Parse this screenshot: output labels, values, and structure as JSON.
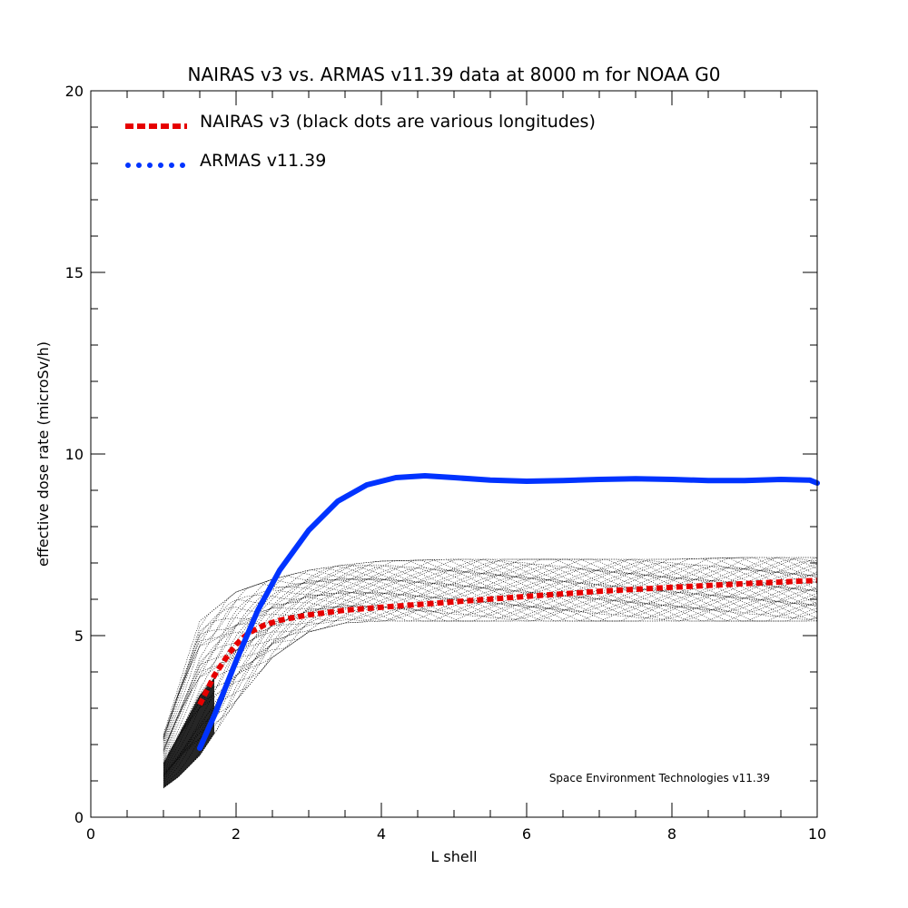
{
  "chart_data": {
    "type": "line",
    "title": "NAIRAS  v3 vs. ARMAS v11.39 data at 8000 m for NOAA G0",
    "xlabel": "L shell",
    "ylabel": "effective dose rate (microSv/h)",
    "xlim": [
      0,
      10
    ],
    "ylim": [
      0,
      20
    ],
    "x_ticks": [
      0,
      2,
      4,
      6,
      8,
      10
    ],
    "y_ticks": [
      0,
      5,
      10,
      15,
      20
    ],
    "x_minor_step": 0.5,
    "y_minor_step": 1,
    "grid": false,
    "legend_position": "top-left",
    "annotation": "Space Environment Technologies v11.39",
    "series": [
      {
        "name": "NAIRAS v3 (black dots are various longitudes)",
        "style": "dashed",
        "color": "#e60000",
        "x": [
          1.5,
          1.6,
          1.7,
          1.8,
          1.9,
          2.0,
          2.1,
          2.2,
          2.4,
          2.6,
          2.8,
          3.0,
          3.5,
          4.0,
          5.0,
          6.0,
          7.0,
          8.0,
          9.0,
          10.0
        ],
        "y": [
          3.1,
          3.5,
          3.9,
          4.2,
          4.5,
          4.75,
          4.95,
          5.1,
          5.3,
          5.42,
          5.5,
          5.57,
          5.7,
          5.78,
          5.93,
          6.08,
          6.22,
          6.33,
          6.43,
          6.52
        ]
      },
      {
        "name": "ARMAS v11.39",
        "style": "dotted",
        "color": "#0033ff",
        "x": [
          1.5,
          1.7,
          2.0,
          2.3,
          2.6,
          3.0,
          3.4,
          3.8,
          4.2,
          4.6,
          5.0,
          5.5,
          6.0,
          6.5,
          7.0,
          7.5,
          8.0,
          8.5,
          9.0,
          9.5,
          9.9,
          10.0
        ],
        "y": [
          1.9,
          2.8,
          4.3,
          5.7,
          6.8,
          7.9,
          8.7,
          9.15,
          9.35,
          9.4,
          9.35,
          9.28,
          9.25,
          9.27,
          9.3,
          9.32,
          9.3,
          9.27,
          9.27,
          9.3,
          9.28,
          9.2
        ]
      }
    ],
    "longitude_band": {
      "x": [
        1.0,
        1.2,
        1.5,
        2.0,
        2.5,
        3.0,
        3.5,
        4.0,
        5.0,
        6.0,
        7.0,
        8.0,
        9.0,
        10.0
      ],
      "lower": [
        0.8,
        1.1,
        1.7,
        3.2,
        4.4,
        5.1,
        5.35,
        5.4,
        5.4,
        5.4,
        5.4,
        5.4,
        5.4,
        5.4
      ],
      "upper": [
        2.3,
        3.6,
        5.4,
        6.2,
        6.55,
        6.8,
        6.95,
        7.05,
        7.1,
        7.1,
        7.1,
        7.1,
        7.15,
        7.15
      ],
      "curves": 40,
      "color": "#000000"
    }
  }
}
